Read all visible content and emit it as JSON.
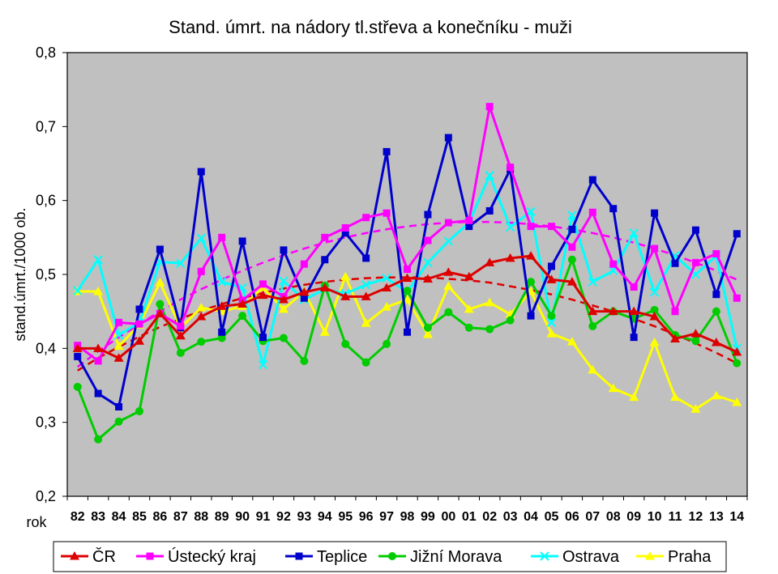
{
  "chart_data": {
    "type": "line",
    "title": "Stand. úmrt. na nádory tl.střeva a konečníku - muži",
    "ylabel": "stand.úmrt./1000 ob.",
    "xlabel": "rok",
    "ylim": [
      0.2,
      0.8
    ],
    "yticks": [
      "0,2",
      "0,3",
      "0,4",
      "0,5",
      "0,6",
      "0,7",
      "0,8"
    ],
    "ytick_values": [
      0.2,
      0.3,
      0.4,
      0.5,
      0.6,
      0.7,
      0.8
    ],
    "categories": [
      "82",
      "83",
      "84",
      "85",
      "86",
      "87",
      "88",
      "89",
      "90",
      "91",
      "92",
      "93",
      "94",
      "95",
      "96",
      "97",
      "98",
      "99",
      "00",
      "01",
      "02",
      "03",
      "04",
      "05",
      "06",
      "07",
      "08",
      "09",
      "10",
      "11",
      "12",
      "13",
      "14"
    ],
    "grid": false,
    "legend_position": "bottom",
    "plot_background": "#c0c0c0",
    "series": [
      {
        "name": "ČR",
        "color": "#dd0000",
        "marker": "triangle",
        "values": [
          0.4,
          0.4,
          0.387,
          0.41,
          0.447,
          0.417,
          0.443,
          0.457,
          0.46,
          0.472,
          0.466,
          0.476,
          0.482,
          0.47,
          0.47,
          0.482,
          0.495,
          0.494,
          0.503,
          0.497,
          0.516,
          0.522,
          0.525,
          0.493,
          0.49,
          0.45,
          0.45,
          0.45,
          0.443,
          0.413,
          0.42,
          0.408,
          0.395
        ]
      },
      {
        "name": "Ústecký kraj",
        "color": "#ff00ff",
        "marker": "square",
        "values": [
          0.404,
          0.383,
          0.435,
          0.433,
          0.447,
          0.43,
          0.504,
          0.55,
          0.465,
          0.487,
          0.47,
          0.514,
          0.55,
          0.563,
          0.577,
          0.583,
          0.507,
          0.546,
          0.57,
          0.573,
          0.727,
          0.645,
          0.565,
          0.565,
          0.537,
          0.584,
          0.514,
          0.483,
          0.535,
          0.45,
          0.516,
          0.528,
          0.468
        ]
      },
      {
        "name": "Teplice",
        "color": "#0000cc",
        "marker": "square",
        "values": [
          0.389,
          0.339,
          0.321,
          0.453,
          0.534,
          0.428,
          0.639,
          0.422,
          0.545,
          0.415,
          0.533,
          0.468,
          0.52,
          0.556,
          0.522,
          0.666,
          0.422,
          0.581,
          0.685,
          0.565,
          0.586,
          0.642,
          0.444,
          0.511,
          0.561,
          0.628,
          0.589,
          0.415,
          0.583,
          0.515,
          0.56,
          0.473,
          0.555
        ]
      },
      {
        "name": "Jižní Morava",
        "color": "#00cc00",
        "marker": "circle",
        "values": [
          0.348,
          0.277,
          0.301,
          0.315,
          0.46,
          0.394,
          0.409,
          0.414,
          0.444,
          0.41,
          0.414,
          0.383,
          0.485,
          0.406,
          0.381,
          0.406,
          0.478,
          0.428,
          0.449,
          0.428,
          0.426,
          0.438,
          0.49,
          0.444,
          0.52,
          0.43,
          0.45,
          0.44,
          0.452,
          0.418,
          0.41,
          0.45,
          0.38
        ]
      },
      {
        "name": "Ostrava",
        "color": "#00ffff",
        "marker": "x",
        "values": [
          0.478,
          0.52,
          0.418,
          0.435,
          0.517,
          0.515,
          0.549,
          0.49,
          0.482,
          0.378,
          0.491,
          0.466,
          0.48,
          0.474,
          0.486,
          0.495,
          0.476,
          0.516,
          0.545,
          0.57,
          0.634,
          0.564,
          0.585,
          0.435,
          0.58,
          0.49,
          0.505,
          0.556,
          0.476,
          0.525,
          0.5,
          0.525,
          0.4
        ]
      },
      {
        "name": "Praha",
        "color": "#ffff00",
        "marker": "triangle",
        "values": [
          0.477,
          0.477,
          0.403,
          0.432,
          0.489,
          0.428,
          0.455,
          0.45,
          0.457,
          0.482,
          0.453,
          0.477,
          0.422,
          0.497,
          0.434,
          0.456,
          0.466,
          0.419,
          0.484,
          0.453,
          0.462,
          0.446,
          0.477,
          0.42,
          0.409,
          0.371,
          0.346,
          0.334,
          0.408,
          0.334,
          0.318,
          0.336,
          0.327
        ]
      }
    ],
    "trendlines": [
      {
        "color": "#dd0000",
        "dashed": true,
        "values": [
          0.37,
          0.387,
          0.402,
          0.416,
          0.429,
          0.44,
          0.451,
          0.46,
          0.468,
          0.475,
          0.481,
          0.486,
          0.49,
          0.493,
          0.495,
          0.496,
          0.496,
          0.496,
          0.494,
          0.492,
          0.489,
          0.484,
          0.479,
          0.473,
          0.466,
          0.458,
          0.45,
          0.44,
          0.43,
          0.419,
          0.407,
          0.394,
          0.38
        ]
      },
      {
        "color": "#ff00ff",
        "dashed": true,
        "values": [
          0.375,
          0.396,
          0.415,
          0.433,
          0.45,
          0.466,
          0.48,
          0.493,
          0.505,
          0.516,
          0.526,
          0.535,
          0.543,
          0.55,
          0.556,
          0.561,
          0.565,
          0.568,
          0.57,
          0.571,
          0.571,
          0.57,
          0.568,
          0.565,
          0.561,
          0.556,
          0.55,
          0.543,
          0.535,
          0.526,
          0.516,
          0.505,
          0.493
        ]
      }
    ]
  }
}
